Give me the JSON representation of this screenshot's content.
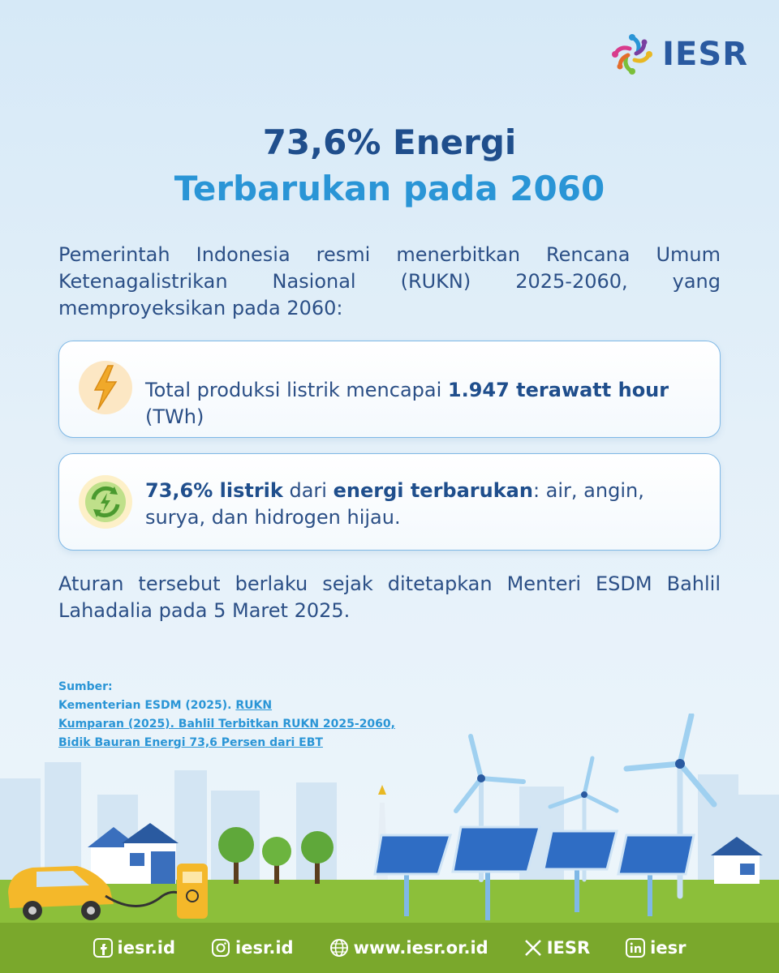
{
  "brand": {
    "name": "IESR"
  },
  "title": {
    "line1": "73,6% Energi",
    "line2": "Terbarukan pada 2060"
  },
  "intro": "Pemerintah Indonesia resmi menerbitkan Rencana Umum Ketenagalistrikan Nasional (RUKN) 2025-2060, yang memproyeksikan pada 2060:",
  "card1": {
    "pre": "Total produksi listrik mencapai ",
    "bold": "1.947 terawatt hour",
    "post": " (TWh)",
    "icon": "lightning-icon"
  },
  "card2": {
    "bold1": "73,6%  listrik",
    "mid": " dari ",
    "bold2": "energi terbarukan",
    "post": ": air, angin, surya, dan hidrogen hijau.",
    "icon": "renewable-cycle-icon"
  },
  "note": "Aturan tersebut berlaku sejak ditetapkan Menteri ESDM Bahlil Lahadalia pada 5 Maret 2025.",
  "sources": {
    "label": "Sumber:",
    "item1_text": "Kementerian ESDM (2025). ",
    "item1_link": "RUKN",
    "item2_link_a": "Kumparan (2025). Bahlil Terbitkan RUKN 2025-2060,",
    "item2_link_b": "Bidik Bauran Energi 73,6 Persen dari EBT"
  },
  "footer": {
    "facebook": "iesr.id",
    "instagram": "iesr.id",
    "website": "www.iesr.or.id",
    "x": "IESR",
    "linkedin": "iesr"
  },
  "colors": {
    "navy": "#1f4e8c",
    "accent": "#2a95d6",
    "green": "#7aa82c"
  }
}
